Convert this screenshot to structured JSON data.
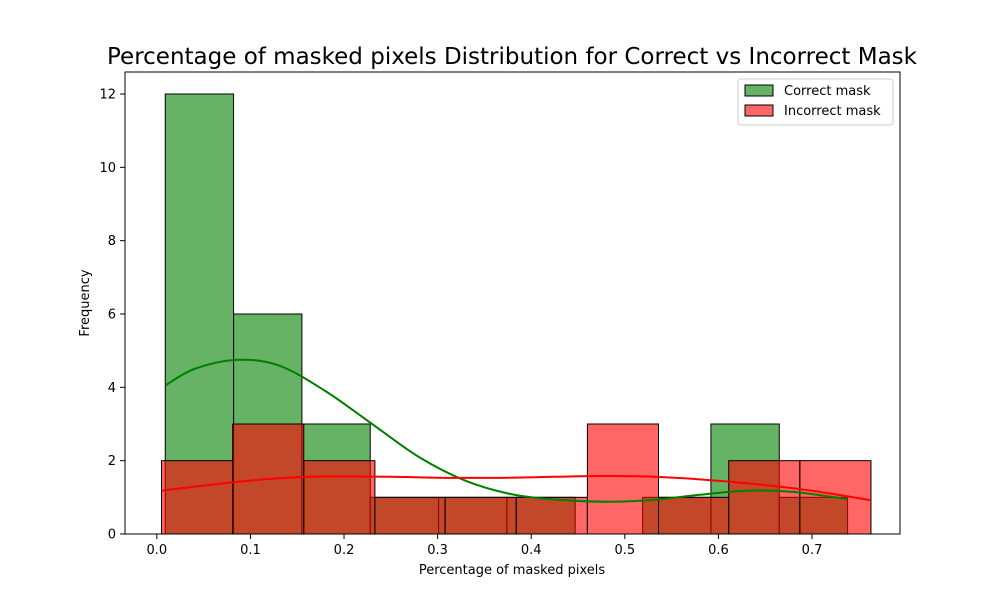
{
  "chart_data": {
    "type": "histogram",
    "title": "Percentage of masked pixels Distribution for Correct vs Incorrect Mask",
    "xlabel": "Percentage of masked pixels",
    "ylabel": "Frequency",
    "xlim": [
      -0.034,
      0.794
    ],
    "ylim": [
      0,
      12.6
    ],
    "xticks": [
      0.0,
      0.1,
      0.2,
      0.3,
      0.4,
      0.5,
      0.6,
      0.7
    ],
    "xtick_labels": [
      "0.0",
      "0.1",
      "0.2",
      "0.3",
      "0.4",
      "0.5",
      "0.6",
      "0.7"
    ],
    "yticks": [
      0,
      2,
      4,
      6,
      8,
      10,
      12
    ],
    "ytick_labels": [
      "0",
      "2",
      "4",
      "6",
      "8",
      "10",
      "12"
    ],
    "legend_position": "top-right",
    "grid": false,
    "series": [
      {
        "name": "Correct mask",
        "color": "#008000",
        "fill_alpha": 0.6,
        "bins": [
          {
            "x0": 0.009,
            "x1": 0.082,
            "count": 12
          },
          {
            "x0": 0.082,
            "x1": 0.155,
            "count": 6
          },
          {
            "x0": 0.155,
            "x1": 0.228,
            "count": 3
          },
          {
            "x0": 0.228,
            "x1": 0.301,
            "count": 1
          },
          {
            "x0": 0.301,
            "x1": 0.374,
            "count": 1
          },
          {
            "x0": 0.374,
            "x1": 0.447,
            "count": 1
          },
          {
            "x0": 0.447,
            "x1": 0.519,
            "count": 0
          },
          {
            "x0": 0.519,
            "x1": 0.592,
            "count": 1
          },
          {
            "x0": 0.592,
            "x1": 0.665,
            "count": 3
          },
          {
            "x0": 0.665,
            "x1": 0.738,
            "count": 1
          }
        ],
        "kde": [
          {
            "x": 0.009,
            "y": 4.05
          },
          {
            "x": 0.04,
            "y": 4.5
          },
          {
            "x": 0.085,
            "y": 4.75
          },
          {
            "x": 0.13,
            "y": 4.6
          },
          {
            "x": 0.18,
            "y": 3.9
          },
          {
            "x": 0.23,
            "y": 3.0
          },
          {
            "x": 0.28,
            "y": 2.1
          },
          {
            "x": 0.33,
            "y": 1.45
          },
          {
            "x": 0.38,
            "y": 1.08
          },
          {
            "x": 0.43,
            "y": 0.93
          },
          {
            "x": 0.48,
            "y": 0.88
          },
          {
            "x": 0.53,
            "y": 0.93
          },
          {
            "x": 0.58,
            "y": 1.07
          },
          {
            "x": 0.63,
            "y": 1.18
          },
          {
            "x": 0.68,
            "y": 1.15
          },
          {
            "x": 0.738,
            "y": 0.95
          }
        ]
      },
      {
        "name": "Incorrect mask",
        "color": "#ff0000",
        "fill_alpha": 0.6,
        "bins": [
          {
            "x0": 0.005,
            "x1": 0.081,
            "count": 2
          },
          {
            "x0": 0.081,
            "x1": 0.157,
            "count": 3
          },
          {
            "x0": 0.157,
            "x1": 0.233,
            "count": 2
          },
          {
            "x0": 0.233,
            "x1": 0.308,
            "count": 1
          },
          {
            "x0": 0.308,
            "x1": 0.384,
            "count": 1
          },
          {
            "x0": 0.384,
            "x1": 0.46,
            "count": 1
          },
          {
            "x0": 0.46,
            "x1": 0.536,
            "count": 3
          },
          {
            "x0": 0.536,
            "x1": 0.611,
            "count": 1
          },
          {
            "x0": 0.611,
            "x1": 0.687,
            "count": 2
          },
          {
            "x0": 0.687,
            "x1": 0.763,
            "count": 2
          }
        ],
        "kde": [
          {
            "x": 0.005,
            "y": 1.18
          },
          {
            "x": 0.06,
            "y": 1.35
          },
          {
            "x": 0.12,
            "y": 1.5
          },
          {
            "x": 0.18,
            "y": 1.57
          },
          {
            "x": 0.25,
            "y": 1.56
          },
          {
            "x": 0.32,
            "y": 1.53
          },
          {
            "x": 0.39,
            "y": 1.54
          },
          {
            "x": 0.46,
            "y": 1.58
          },
          {
            "x": 0.52,
            "y": 1.57
          },
          {
            "x": 0.58,
            "y": 1.49
          },
          {
            "x": 0.64,
            "y": 1.36
          },
          {
            "x": 0.7,
            "y": 1.18
          },
          {
            "x": 0.763,
            "y": 0.92
          }
        ]
      }
    ]
  }
}
